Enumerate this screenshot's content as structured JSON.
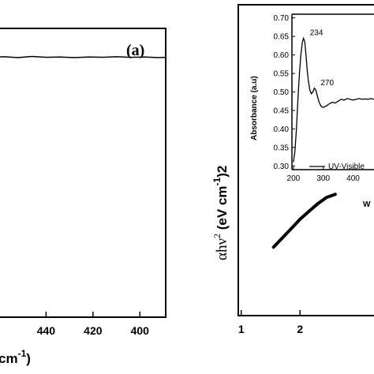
{
  "chart_data": [
    {
      "panel": "a",
      "type": "line",
      "panel_label": "(a)",
      "x_axis_reversed": true,
      "xlim": [
        463,
        389
      ],
      "x_ticks": [
        440,
        420,
        400
      ],
      "x_tick_labels": [
        "440",
        "420",
        "400"
      ],
      "xlabel_visible": "cm-1)",
      "xlabel_main": "cm",
      "xlabel_sup": "-1",
      "xlabel_tail": ")",
      "series": [
        {
          "x": [
            463,
            458,
            452,
            446,
            440,
            434,
            428,
            422,
            416,
            410,
            404,
            398,
            392,
            389
          ],
          "y": [
            0.9,
            0.902,
            0.899,
            0.903,
            0.9,
            0.901,
            0.899,
            0.901,
            0.9,
            0.902,
            0.9,
            0.901,
            0.899,
            0.9
          ]
        }
      ],
      "ylim": [
        0,
        1
      ]
    },
    {
      "panel": "b",
      "type": "line",
      "xlim": [
        0.95,
        3.5
      ],
      "x_ticks": [
        1,
        2
      ],
      "x_tick_labels": [
        "1",
        "2"
      ],
      "ylabel": "αhν² (eV cm⁻¹)²",
      "ylabel_lead": "αhν",
      "ylabel_sup1": "2",
      "ylabel_mid": " (eV cm",
      "ylabel_sup2": "-1",
      "ylabel_tail": ")2",
      "series": [
        {
          "x": [
            1.55,
            1.7,
            1.85,
            2.0,
            2.15,
            2.3,
            2.45,
            2.6
          ],
          "y": [
            0.22,
            0.25,
            0.28,
            0.31,
            0.335,
            0.36,
            0.38,
            0.39
          ]
        }
      ],
      "ylim": [
        0,
        1
      ]
    },
    {
      "panel": "b-inset",
      "type": "line",
      "xlim": [
        195,
        470
      ],
      "ylim": [
        0.29,
        0.71
      ],
      "x_ticks": [
        200,
        300,
        400
      ],
      "x_tick_labels": [
        "200",
        "300",
        "400"
      ],
      "y_ticks": [
        0.3,
        0.35,
        0.4,
        0.45,
        0.5,
        0.55,
        0.6,
        0.65,
        0.7
      ],
      "y_tick_labels": [
        "0.30",
        "0.35",
        "0.40",
        "0.45",
        "0.50",
        "0.55",
        "0.60",
        "0.65",
        "0.70"
      ],
      "ylabel": "Absorbance (a.u)",
      "xlabel_visible": "W",
      "legend_entry": "UV-Visible",
      "annotations": [
        {
          "text": "234",
          "x": 234,
          "y": 0.645
        },
        {
          "text": "270",
          "x": 270,
          "y": 0.51
        }
      ],
      "series": [
        {
          "name": "UV-Visible",
          "x": [
            200,
            205,
            210,
            215,
            220,
            225,
            230,
            234,
            238,
            242,
            246,
            250,
            255,
            260,
            265,
            270,
            275,
            280,
            285,
            290,
            295,
            300,
            310,
            320,
            330,
            340,
            350,
            360,
            370,
            380,
            390,
            400,
            410,
            420,
            430,
            440,
            450,
            460,
            470
          ],
          "y": [
            0.31,
            0.34,
            0.4,
            0.48,
            0.55,
            0.6,
            0.635,
            0.645,
            0.635,
            0.6,
            0.56,
            0.53,
            0.505,
            0.495,
            0.5,
            0.51,
            0.505,
            0.49,
            0.475,
            0.465,
            0.46,
            0.458,
            0.462,
            0.468,
            0.472,
            0.47,
            0.475,
            0.48,
            0.478,
            0.482,
            0.48,
            0.478,
            0.48,
            0.482,
            0.48,
            0.481,
            0.48,
            0.482,
            0.48
          ]
        }
      ]
    }
  ]
}
